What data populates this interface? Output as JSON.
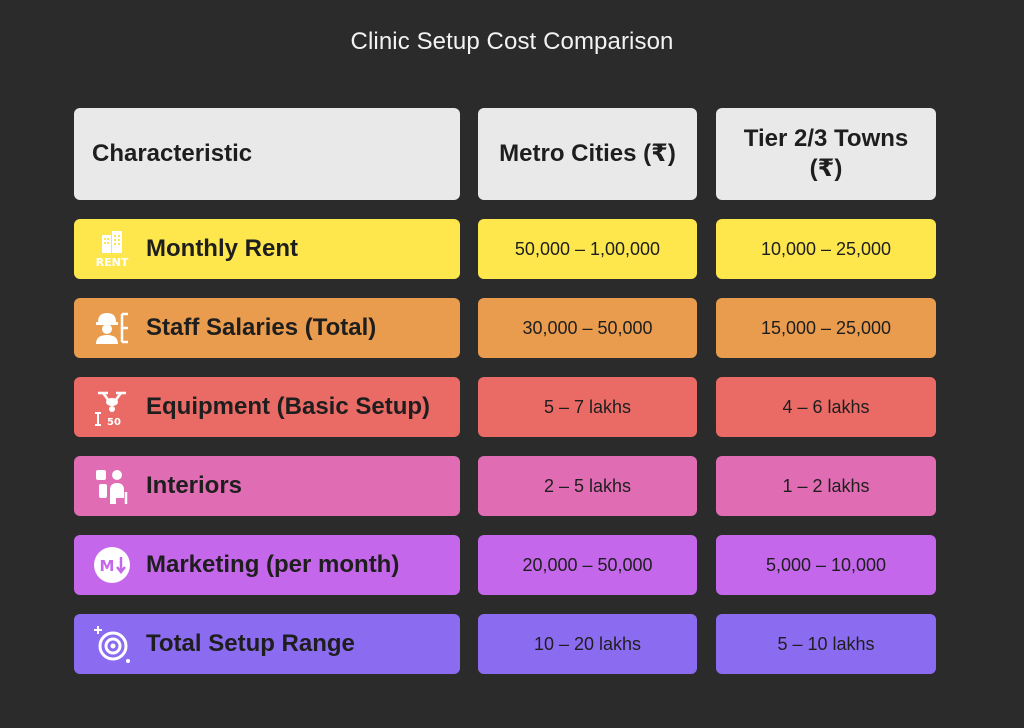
{
  "chart_data": {
    "type": "table",
    "title": "Clinic Setup Cost Comparison",
    "columns": [
      "Characteristic",
      "Metro Cities (₹)",
      "Tier 2/3 Towns (₹)"
    ],
    "rows": [
      {
        "label": "Monthly Rent",
        "icon": "rent-building-icon",
        "color": "#fde74c",
        "metro": "50,000 – 1,00,000",
        "tier": "10,000 – 25,000"
      },
      {
        "label": "Staff Salaries (Total)",
        "icon": "staff-worker-icon",
        "color": "#e99b4e",
        "metro": "30,000 – 50,000",
        "tier": "15,000 – 25,000"
      },
      {
        "label": "Equipment (Basic Setup)",
        "icon": "drone-equipment-icon",
        "color": "#ea6a66",
        "metro": "5 – 7 lakhs",
        "tier": "4 – 6 lakhs"
      },
      {
        "label": "Interiors",
        "icon": "interior-chair-icon",
        "color": "#e06cb3",
        "metro": "2 – 5 lakhs",
        "tier": "1 – 2 lakhs"
      },
      {
        "label": "Marketing (per month)",
        "icon": "marketing-badge-icon",
        "color": "#c467eb",
        "metro": "20,000 – 50,000",
        "tier": "5,000 – 10,000"
      },
      {
        "label": "Total Setup Range",
        "icon": "target-icon",
        "color": "#8b6cf0",
        "metro": "10 – 20 lakhs",
        "tier": "5 – 10 lakhs"
      }
    ]
  },
  "header_color": "#e9e9e9",
  "background_color": "#2b2b2b"
}
